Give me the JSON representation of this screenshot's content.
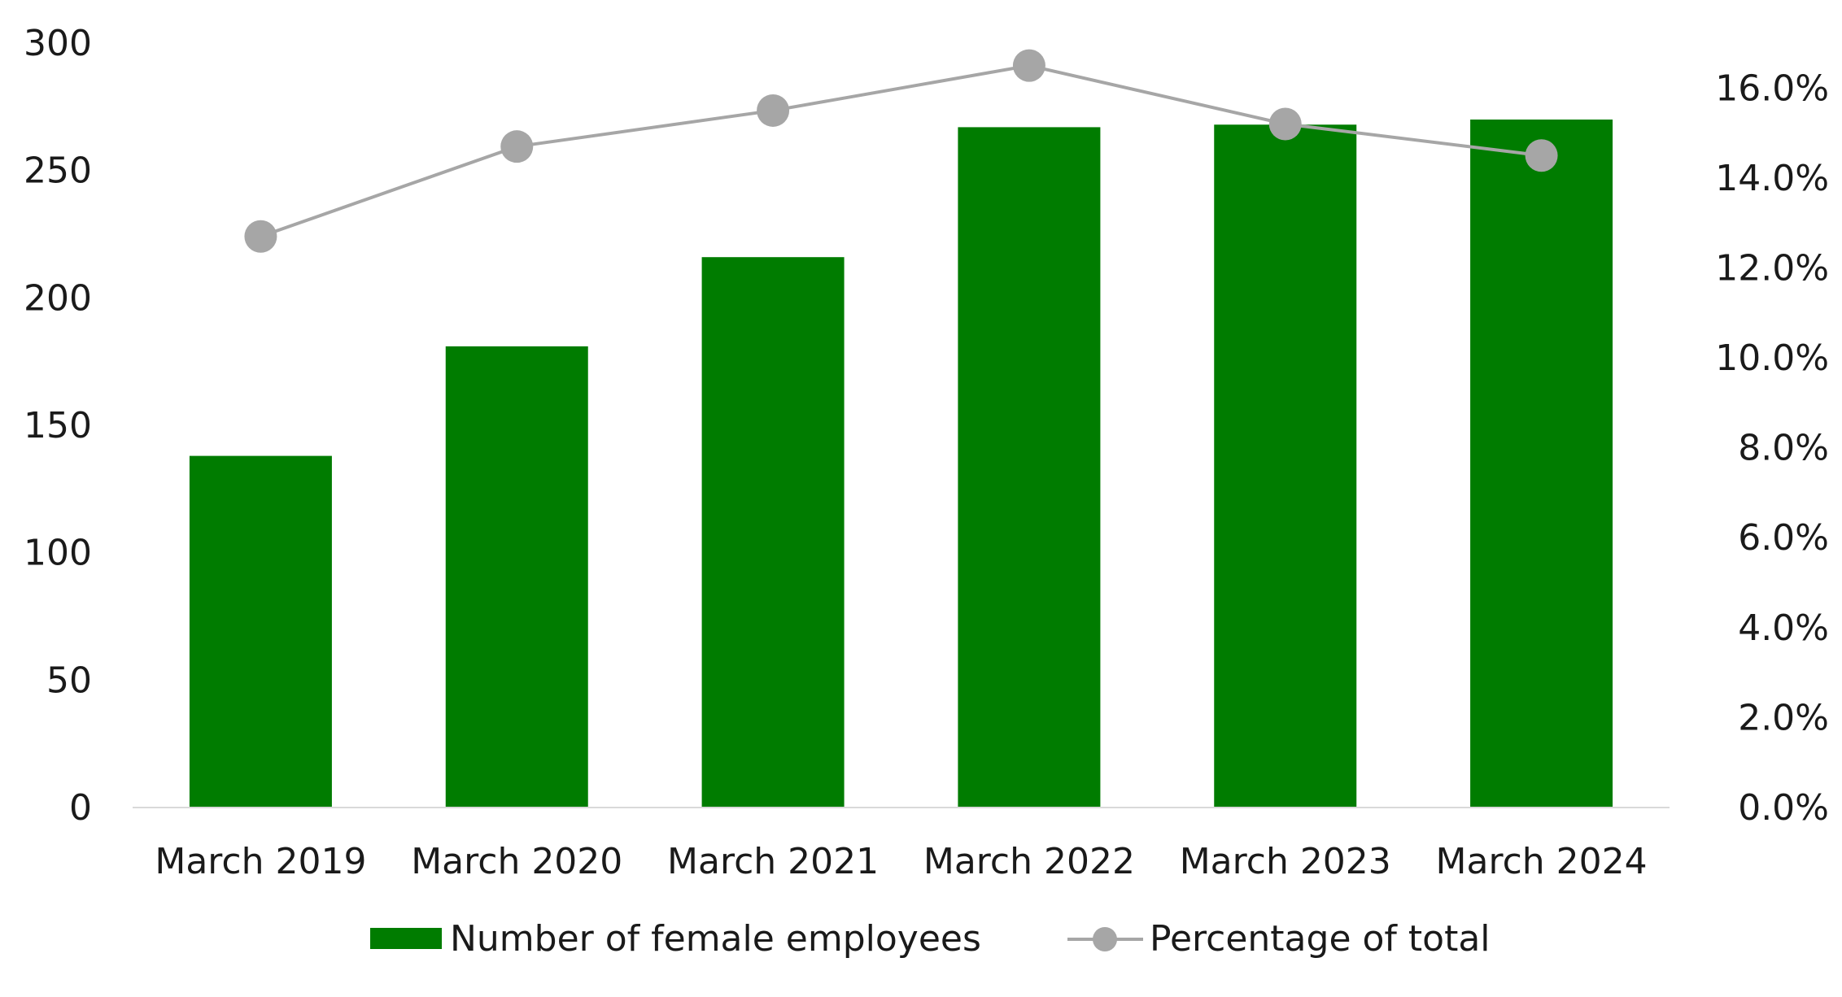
{
  "chart_data": {
    "type": "bar",
    "categories": [
      "March 2019",
      "March 2020",
      "March 2021",
      "March 2022",
      "March 2023",
      "March 2024"
    ],
    "series": [
      {
        "name": "Number of female employees",
        "type": "bar",
        "axis": "left",
        "values": [
          138,
          181,
          216,
          267,
          268,
          270
        ]
      },
      {
        "name": "Percentage of total",
        "type": "line",
        "axis": "right",
        "values": [
          12.7,
          14.7,
          15.5,
          16.5,
          15.2,
          14.5
        ]
      }
    ],
    "y_left": {
      "range": [
        0,
        300
      ],
      "ticks": [
        0,
        50,
        100,
        150,
        200,
        250,
        300
      ],
      "tick_labels": [
        "0",
        "50",
        "100",
        "150",
        "200",
        "250",
        "300"
      ]
    },
    "y_right": {
      "range": [
        0,
        17
      ],
      "ticks": [
        0,
        2,
        4,
        6,
        8,
        10,
        12,
        14,
        16
      ],
      "tick_labels": [
        "0.0%",
        "2.0%",
        "4.0%",
        "6.0%",
        "8.0%",
        "10.0%",
        "12.0%",
        "14.0%",
        "16.0%"
      ]
    },
    "grid": false,
    "legend_position": "bottom",
    "colors": {
      "bar": "#007c00",
      "line": "#a6a6a6",
      "axis": "#d9d9d9"
    }
  }
}
